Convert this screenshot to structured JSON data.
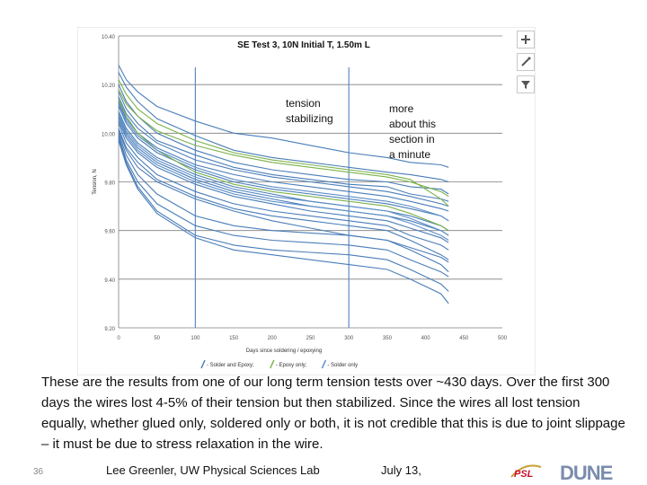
{
  "chart_data": {
    "type": "line",
    "title": "SE Test 3, 10N Initial T, 1.50m L",
    "xlabel": "Days since soldering / epoxying",
    "ylabel": "Tension, N",
    "xlim": [
      0,
      500
    ],
    "ylim": [
      9.2,
      10.4
    ],
    "x_ticks": [
      "0",
      "50",
      "100",
      "150",
      "200",
      "250",
      "300",
      "350",
      "400",
      "450",
      "500"
    ],
    "y_ticks": [
      "10.40",
      "10.20",
      "10.00",
      "9.80",
      "9.60",
      "9.40",
      "9.20"
    ],
    "x": [
      0,
      10,
      25,
      50,
      100,
      150,
      200,
      250,
      300,
      350,
      380,
      420,
      430
    ],
    "series": [
      {
        "name": "Solder and Epoxy",
        "color": "#4a7db8",
        "values": [
          10.28,
          10.22,
          10.17,
          10.11,
          10.05,
          10.0,
          9.98,
          9.95,
          9.92,
          9.9,
          9.88,
          9.87,
          9.86
        ]
      },
      {
        "name": "Solder and Epoxy",
        "color": "#4a7db8",
        "values": [
          10.25,
          10.19,
          10.13,
          10.06,
          9.99,
          9.93,
          9.9,
          9.88,
          9.86,
          9.84,
          9.83,
          9.81,
          9.8
        ]
      },
      {
        "name": "Solder and Epoxy",
        "color": "#4a7db8",
        "values": [
          10.2,
          10.13,
          10.07,
          10.0,
          9.93,
          9.88,
          9.85,
          9.83,
          9.81,
          9.8,
          9.78,
          9.77,
          9.75
        ]
      },
      {
        "name": "Solder and Epoxy",
        "color": "#4a7db8",
        "values": [
          10.17,
          10.1,
          10.04,
          9.97,
          9.91,
          9.86,
          9.83,
          9.81,
          9.79,
          9.78,
          9.75,
          9.73,
          9.72
        ]
      },
      {
        "name": "Solder and Epoxy",
        "color": "#4a7db8",
        "values": [
          10.15,
          10.08,
          10.02,
          9.96,
          9.89,
          9.85,
          9.82,
          9.8,
          9.78,
          9.76,
          9.74,
          9.71,
          9.7
        ]
      },
      {
        "name": "Solder and Epoxy",
        "color": "#4a7db8",
        "values": [
          10.13,
          10.06,
          10.0,
          9.94,
          9.87,
          9.83,
          9.8,
          9.78,
          9.76,
          9.74,
          9.72,
          9.69,
          9.68
        ]
      },
      {
        "name": "Solder and Epoxy",
        "color": "#4a7db8",
        "values": [
          10.11,
          10.04,
          9.98,
          9.92,
          9.85,
          9.8,
          9.77,
          9.75,
          9.73,
          9.71,
          9.69,
          9.66,
          9.64
        ]
      },
      {
        "name": "Solder and Epoxy",
        "color": "#4a7db8",
        "values": [
          10.09,
          10.02,
          9.96,
          9.9,
          9.83,
          9.78,
          9.75,
          9.72,
          9.7,
          9.68,
          9.66,
          9.62,
          9.6
        ]
      },
      {
        "name": "Solder and Epoxy",
        "color": "#4a7db8",
        "values": [
          10.07,
          10.0,
          9.94,
          9.88,
          9.81,
          9.76,
          9.73,
          9.7,
          9.68,
          9.66,
          9.64,
          9.6,
          9.58
        ]
      },
      {
        "name": "Solder and Epoxy",
        "color": "#4a7db8",
        "values": [
          10.05,
          9.98,
          9.92,
          9.86,
          9.79,
          9.74,
          9.71,
          9.68,
          9.66,
          9.64,
          9.61,
          9.57,
          9.55
        ]
      },
      {
        "name": "Solder and Epoxy",
        "color": "#4a7db8",
        "values": [
          10.04,
          9.96,
          9.9,
          9.83,
          9.76,
          9.71,
          9.68,
          9.66,
          9.64,
          9.62,
          9.58,
          9.54,
          9.52
        ]
      },
      {
        "name": "Solder and Epoxy",
        "color": "#4a7db8",
        "values": [
          10.02,
          9.94,
          9.88,
          9.81,
          9.74,
          9.69,
          9.66,
          9.64,
          9.62,
          9.6,
          9.56,
          9.5,
          9.48
        ]
      },
      {
        "name": "Solder and Epoxy",
        "color": "#4a7db8",
        "values": [
          10.01,
          9.93,
          9.86,
          9.8,
          9.73,
          9.68,
          9.64,
          9.61,
          9.58,
          9.56,
          9.52,
          9.46,
          9.43
        ]
      },
      {
        "name": "Solder and Epoxy",
        "color": "#4a7db8",
        "values": [
          10.0,
          9.91,
          9.83,
          9.75,
          9.66,
          9.62,
          9.6,
          9.59,
          9.58,
          9.56,
          9.53,
          9.49,
          9.47
        ]
      },
      {
        "name": "Solder and Epoxy",
        "color": "#4a7db8",
        "values": [
          9.99,
          9.89,
          9.8,
          9.71,
          9.62,
          9.58,
          9.56,
          9.55,
          9.54,
          9.52,
          9.48,
          9.43,
          9.41
        ]
      },
      {
        "name": "Solder and Epoxy",
        "color": "#4a7db8",
        "values": [
          9.98,
          9.88,
          9.78,
          9.68,
          9.58,
          9.54,
          9.52,
          9.51,
          9.5,
          9.48,
          9.44,
          9.38,
          9.35
        ]
      },
      {
        "name": "Solder and Epoxy",
        "color": "#4a7db8",
        "values": [
          9.97,
          9.87,
          9.77,
          9.67,
          9.57,
          9.52,
          9.5,
          9.48,
          9.46,
          9.44,
          9.4,
          9.34,
          9.3
        ]
      },
      {
        "name": "Epoxy only",
        "color": "#7bb24a",
        "values": [
          10.22,
          10.16,
          10.1,
          10.04,
          9.97,
          9.92,
          9.89,
          9.87,
          9.85,
          9.83,
          9.81,
          9.73,
          9.7
        ]
      },
      {
        "name": "Epoxy only",
        "color": "#7bb24a",
        "values": [
          10.18,
          10.12,
          10.07,
          10.01,
          9.95,
          9.91,
          9.88,
          9.86,
          9.84,
          9.82,
          9.8,
          9.76,
          9.74
        ]
      },
      {
        "name": "Epoxy only",
        "color": "#7bb24a",
        "values": [
          10.14,
          10.07,
          10.0,
          9.93,
          9.84,
          9.79,
          9.76,
          9.74,
          9.72,
          9.7,
          9.67,
          9.62,
          9.6
        ]
      },
      {
        "name": "Solder only",
        "color": "#5b8ec7",
        "values": [
          10.12,
          10.05,
          9.99,
          9.93,
          9.86,
          9.81,
          9.78,
          9.76,
          9.74,
          9.72,
          9.7,
          9.66,
          9.64
        ]
      },
      {
        "name": "Solder only",
        "color": "#5b8ec7",
        "values": [
          10.08,
          10.01,
          9.95,
          9.89,
          9.82,
          9.77,
          9.74,
          9.72,
          9.7,
          9.68,
          9.65,
          9.6,
          9.58
        ]
      },
      {
        "name": "Solder only",
        "color": "#5b8ec7",
        "values": [
          10.06,
          9.99,
          9.93,
          9.87,
          9.8,
          9.75,
          9.72,
          9.7,
          9.68,
          9.66,
          9.63,
          9.58,
          9.56
        ]
      }
    ],
    "reference_lines_x": [
      100,
      300
    ],
    "legend": [
      {
        "label": "- Solder and Epoxy;",
        "color": "#4a7db8"
      },
      {
        "label": "- Epoxy only;",
        "color": "#7bb24a"
      },
      {
        "label": "- Solder only",
        "color": "#5b8ec7"
      }
    ],
    "legend_position": "bottom",
    "grid": true
  },
  "annotations": {
    "left": "tension\nstabilizing",
    "right": "more\nabout this\nsection in\na minute"
  },
  "toolbar": {
    "add_icon": "plus-icon",
    "style_icon": "brush-icon",
    "filter_icon": "filter-icon"
  },
  "caption": "These are the results from one of our long term tension tests over ~430 days.  Over the first 300 days the wires lost 4-5% of their tension but then stabilized.  Since the wires all lost tension equally, whether glued only, soldered only or both, it is not credible that this is due to joint slippage – it must be due to stress relaxation in the wire.",
  "footer": {
    "slide_number": "36",
    "author": "Lee Greenler, UW Physical Sciences Lab",
    "date": "July 13,",
    "logo_psl": "PSL",
    "logo_dune": "DUNE"
  }
}
